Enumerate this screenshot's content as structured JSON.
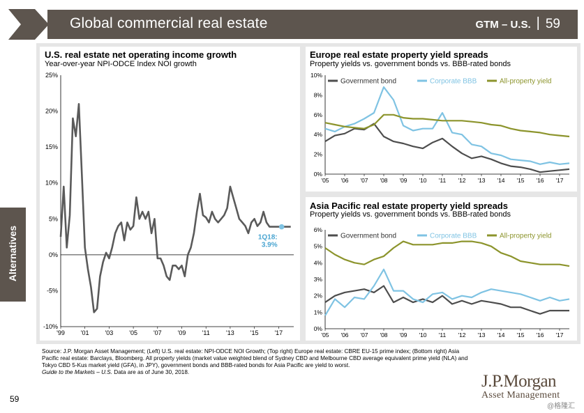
{
  "header": {
    "title": "Global commercial real estate",
    "gtm_label": "GTM – U.S.",
    "page_number": "59"
  },
  "side_tab": {
    "label": "Alternatives"
  },
  "left_chart": {
    "title": "U.S. real estate net operating income growth",
    "subtitle": "Year-over-year NPI-ODCE Index NOI growth",
    "annotation_line1": "1Q18:",
    "annotation_line2": "3.9%"
  },
  "europe_chart": {
    "title": "Europe real estate property yield spreads",
    "subtitle": "Property yields vs. government bonds vs. BBB-rated bonds"
  },
  "asia_chart": {
    "title": "Asia Pacific real estate property yield spreads",
    "subtitle": "Property yields vs. government bonds vs. BBB-rated bonds"
  },
  "source_text": "Source: J.P. Morgan Asset Management; (Left) U.S. real estate: NPI-ODCE NOI Growth; (Top right) Europe real estate: CBRE EU-15 prime index; (Bottom right) Asia Pacific real estate: Barclays, Bloomberg. All property yields (market value weighted blend of Sydney CBD and Melbourne CBD average equivalent prime yield (NLA) and Tokyo CBD 5-Kus market yield (GFA), in JPY), government bonds and BBB-rated bonds for Asia Pacific are yield to worst.",
  "guide_text": "Guide to the Markets – U.S.",
  "data_date_text": " Data are as of June 30, 2018.",
  "footer_page": "59",
  "logo": {
    "line1": "J.P.Morgan",
    "line2": "Asset Management"
  },
  "watermark": "@格隆汇",
  "colors": {
    "header": "#5d554e",
    "gov": "#4d4d4d",
    "corp": "#7fc3e3",
    "prop": "#8c942c",
    "nog": "#5a5a5a"
  },
  "chart_data": [
    {
      "type": "line",
      "title": "U.S. real estate net operating income growth",
      "subtitle": "Year-over-year NPI-ODCE Index NOI growth",
      "xlabel": "",
      "ylabel": "",
      "ylim": [
        -10,
        25
      ],
      "yticks": [
        "25%",
        "20%",
        "15%",
        "10%",
        "5%",
        "0%",
        "-5%",
        "-10%"
      ],
      "xlim": [
        1999,
        2018.25
      ],
      "xticks": [
        "'99",
        "'01",
        "'03",
        "'05",
        "'07",
        "'09",
        "'11",
        "'13",
        "'15",
        "'17"
      ],
      "series": [
        {
          "x": [
            1999,
            1999.25,
            1999.5,
            1999.75,
            2000,
            2000.25,
            2000.5,
            2000.75,
            2001,
            2001.25,
            2001.5,
            2001.75,
            2002,
            2002.25,
            2002.5,
            2002.75,
            2003,
            2003.25,
            2003.5,
            2003.75,
            2004,
            2004.25,
            2004.5,
            2004.75,
            2005,
            2005.25,
            2005.5,
            2005.75,
            2006,
            2006.25,
            2006.5,
            2006.75,
            2007,
            2007.25,
            2007.5,
            2007.75,
            2008,
            2008.25,
            2008.5,
            2008.75,
            2009,
            2009.25,
            2009.5,
            2009.75,
            2010,
            2010.25,
            2010.5,
            2010.75,
            2011,
            2011.25,
            2011.5,
            2011.75,
            2012,
            2012.25,
            2012.5,
            2012.75,
            2013,
            2013.25,
            2013.5,
            2013.75,
            2014,
            2014.25,
            2014.5,
            2014.75,
            2015,
            2015.25,
            2015.5,
            2015.75,
            2016,
            2016.25,
            2016.5,
            2016.75,
            2017,
            2017.25,
            2017.5,
            2017.75,
            2018
          ],
          "values": [
            2.5,
            9.5,
            1,
            5.5,
            19,
            16.5,
            21,
            11,
            1,
            -2,
            -4.5,
            -8,
            -7.5,
            -3,
            -1,
            0.3,
            -0.5,
            1,
            3,
            4,
            4.5,
            2,
            4.5,
            3.5,
            4,
            8,
            5,
            6,
            5,
            6,
            3,
            5,
            -0.5,
            -0.5,
            -1.5,
            -3,
            -3.5,
            -1.5,
            -1.5,
            -2,
            -1.5,
            -3,
            0,
            1,
            3,
            6,
            8.5,
            5.5,
            5.2,
            4.5,
            6,
            5,
            4.5,
            5,
            5.5,
            6.5,
            9.5,
            8,
            6.5,
            5,
            4.5,
            4,
            3,
            4.5,
            5,
            4,
            4.5,
            6,
            4.5,
            3.9,
            3.9,
            3.9,
            3.9,
            3.9,
            3.9,
            3.9,
            3.9
          ]
        }
      ],
      "annotations": [
        "1Q18:",
        "3.9%"
      ]
    },
    {
      "type": "line",
      "title": "Europe real estate property yield spreads",
      "subtitle": "Property yields vs. government bonds vs. BBB-rated bonds",
      "ylim": [
        0,
        10
      ],
      "yticks": [
        "10%",
        "8%",
        "6%",
        "4%",
        "2%",
        "0%"
      ],
      "xlim": [
        2005,
        2017.5
      ],
      "xticks": [
        "'05",
        "'06",
        "'07",
        "'08",
        "'09",
        "'10",
        "'11",
        "'12",
        "'13",
        "'14",
        "'15",
        "'16",
        "'17"
      ],
      "series": [
        {
          "name": "Government bond",
          "x": [
            2005,
            2005.5,
            2006,
            2006.5,
            2007,
            2007.5,
            2008,
            2008.5,
            2009,
            2009.5,
            2010,
            2010.5,
            2011,
            2011.5,
            2012,
            2012.5,
            2013,
            2013.5,
            2014,
            2014.5,
            2015,
            2015.5,
            2016,
            2016.5,
            2017,
            2017.5
          ],
          "values": [
            3.3,
            3.9,
            4.1,
            4.6,
            4.5,
            5.1,
            3.8,
            3.3,
            3.1,
            2.8,
            2.6,
            3.2,
            3.6,
            2.8,
            2.1,
            1.6,
            1.8,
            1.5,
            1.1,
            0.8,
            0.7,
            0.5,
            0.2,
            0.3,
            0.4,
            0.5
          ]
        },
        {
          "name": "Corporate BBB",
          "x": [
            2005,
            2005.5,
            2006,
            2006.5,
            2007,
            2007.5,
            2008,
            2008.5,
            2009,
            2009.5,
            2010,
            2010.5,
            2011,
            2011.5,
            2012,
            2012.5,
            2013,
            2013.5,
            2014,
            2014.5,
            2015,
            2015.5,
            2016,
            2016.5,
            2017,
            2017.5
          ],
          "values": [
            4.6,
            4.3,
            4.8,
            5.1,
            5.6,
            6.2,
            8.8,
            7.5,
            4.9,
            4.4,
            4.6,
            4.6,
            6.2,
            4.2,
            4.0,
            3.0,
            2.8,
            2.1,
            1.9,
            1.5,
            1.4,
            1.3,
            1.0,
            1.2,
            1.0,
            1.1
          ]
        },
        {
          "name": "All-property yield",
          "x": [
            2005,
            2005.5,
            2006,
            2006.5,
            2007,
            2007.5,
            2008,
            2008.5,
            2009,
            2009.5,
            2010,
            2010.5,
            2011,
            2011.5,
            2012,
            2012.5,
            2013,
            2013.5,
            2014,
            2014.5,
            2015,
            2015.5,
            2016,
            2016.5,
            2017,
            2017.5
          ],
          "values": [
            5.2,
            5.0,
            4.8,
            4.7,
            4.6,
            5.0,
            6.0,
            6.0,
            5.7,
            5.6,
            5.6,
            5.5,
            5.4,
            5.4,
            5.4,
            5.3,
            5.2,
            5.0,
            4.9,
            4.6,
            4.4,
            4.3,
            4.2,
            4.0,
            3.9,
            3.8
          ]
        }
      ]
    },
    {
      "type": "line",
      "title": "Asia Pacific real estate property yield spreads",
      "subtitle": "Property yields vs. government bonds vs. BBB-rated bonds",
      "ylim": [
        0,
        6
      ],
      "yticks": [
        "6%",
        "5%",
        "4%",
        "3%",
        "2%",
        "1%",
        "0%"
      ],
      "xlim": [
        2005,
        2017.5
      ],
      "xticks": [
        "'05",
        "'06",
        "'07",
        "'08",
        "'09",
        "'10",
        "'11",
        "'12",
        "'13",
        "'14",
        "'15",
        "'16",
        "'17"
      ],
      "series": [
        {
          "name": "Government bond",
          "x": [
            2005,
            2005.5,
            2006,
            2006.5,
            2007,
            2007.5,
            2008,
            2008.5,
            2009,
            2009.5,
            2010,
            2010.5,
            2011,
            2011.5,
            2012,
            2012.5,
            2013,
            2013.5,
            2014,
            2014.5,
            2015,
            2015.5,
            2016,
            2016.5,
            2017,
            2017.5
          ],
          "values": [
            1.6,
            2.0,
            2.2,
            2.3,
            2.4,
            2.2,
            2.6,
            1.6,
            1.9,
            1.6,
            1.8,
            1.6,
            2.0,
            1.5,
            1.7,
            1.5,
            1.7,
            1.6,
            1.5,
            1.3,
            1.3,
            1.1,
            0.9,
            1.1,
            1.1,
            1.1
          ]
        },
        {
          "name": "Corporate BBB",
          "x": [
            2005,
            2005.5,
            2006,
            2006.5,
            2007,
            2007.5,
            2008,
            2008.5,
            2009,
            2009.5,
            2010,
            2010.5,
            2011,
            2011.5,
            2012,
            2012.5,
            2013,
            2013.5,
            2014,
            2014.5,
            2015,
            2015.5,
            2016,
            2016.5,
            2017,
            2017.5
          ],
          "values": [
            0.8,
            1.8,
            1.3,
            1.9,
            1.8,
            2.6,
            3.6,
            2.3,
            2.3,
            1.8,
            1.6,
            2.1,
            2.2,
            1.8,
            2.0,
            1.9,
            2.2,
            2.4,
            2.3,
            2.2,
            2.1,
            1.9,
            1.7,
            1.9,
            1.7,
            1.8
          ]
        },
        {
          "name": "All-property yield",
          "x": [
            2005,
            2005.5,
            2006,
            2006.5,
            2007,
            2007.5,
            2008,
            2008.5,
            2009,
            2009.5,
            2010,
            2010.5,
            2011,
            2011.5,
            2012,
            2012.5,
            2013,
            2013.5,
            2014,
            2014.5,
            2015,
            2015.5,
            2016,
            2016.5,
            2017,
            2017.5
          ],
          "values": [
            4.9,
            4.5,
            4.2,
            4.0,
            3.9,
            4.2,
            4.4,
            4.9,
            5.3,
            5.1,
            5.1,
            5.1,
            5.2,
            5.2,
            5.3,
            5.3,
            5.2,
            5.0,
            4.6,
            4.4,
            4.1,
            4.0,
            3.9,
            3.9,
            3.9,
            3.8
          ]
        }
      ]
    }
  ]
}
